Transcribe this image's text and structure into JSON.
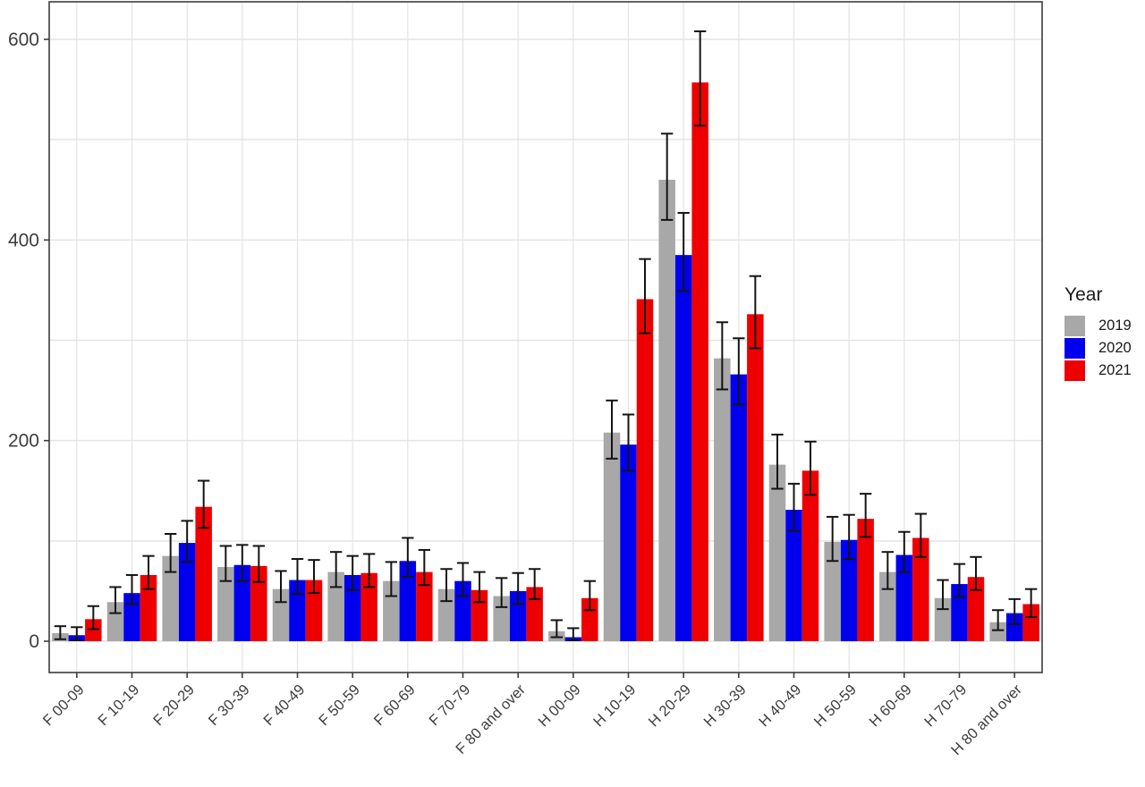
{
  "chart_data": {
    "type": "bar",
    "title": "",
    "xlabel": "",
    "ylabel": "",
    "categories": [
      "F 00-09",
      "F 10-19",
      "F 20-29",
      "F 30-39",
      "F 40-49",
      "F 50-59",
      "F 60-69",
      "F 70-79",
      "F 80 and over",
      "H 00-09",
      "H 10-19",
      "H 20-29",
      "H 30-39",
      "H 40-49",
      "H 50-59",
      "H 60-69",
      "H 70-79",
      "H 80 and over"
    ],
    "series": [
      {
        "name": "2019",
        "color": "#a8a8a8",
        "values": [
          8,
          39,
          85,
          74,
          52,
          69,
          60,
          52,
          45,
          10,
          208,
          460,
          282,
          176,
          99,
          69,
          43,
          19
        ],
        "ci_low": [
          2,
          28,
          69,
          60,
          39,
          54,
          45,
          40,
          34,
          4,
          182,
          420,
          251,
          152,
          80,
          52,
          32,
          11
        ],
        "ci_high": [
          15,
          54,
          107,
          95,
          70,
          89,
          79,
          72,
          63,
          21,
          240,
          506,
          318,
          206,
          124,
          89,
          61,
          31
        ]
      },
      {
        "name": "2020",
        "color": "#0000ee",
        "values": [
          6,
          48,
          98,
          76,
          61,
          66,
          80,
          60,
          50,
          4,
          196,
          385,
          266,
          131,
          101,
          86,
          57,
          28
        ],
        "ci_low": [
          1,
          37,
          79,
          60,
          47,
          51,
          64,
          45,
          37,
          1,
          170,
          349,
          236,
          110,
          82,
          69,
          44,
          17
        ],
        "ci_high": [
          14,
          66,
          120,
          96,
          82,
          85,
          103,
          78,
          68,
          13,
          226,
          427,
          302,
          157,
          126,
          109,
          77,
          42
        ]
      },
      {
        "name": "2021",
        "color": "#ee0000",
        "values": [
          22,
          66,
          134,
          75,
          61,
          68,
          69,
          51,
          54,
          43,
          341,
          557,
          326,
          170,
          122,
          103,
          64,
          37
        ],
        "ci_low": [
          12,
          52,
          113,
          59,
          48,
          54,
          56,
          39,
          42,
          31,
          307,
          514,
          292,
          146,
          104,
          84,
          51,
          24
        ],
        "ci_high": [
          35,
          85,
          160,
          95,
          81,
          87,
          91,
          69,
          72,
          60,
          381,
          608,
          364,
          199,
          147,
          127,
          84,
          52
        ]
      }
    ],
    "error_bars": true,
    "yticks": [
      0,
      200,
      400,
      600
    ],
    "ytick_labels": [
      "0",
      "200",
      "400",
      "600"
    ],
    "ylim": [
      0,
      637
    ],
    "minor_grid_step": 100,
    "grid": true,
    "legend": {
      "title": "Year",
      "position": "right",
      "entries": [
        "2019",
        "2020",
        "2021"
      ]
    },
    "colors": {
      "grid": "#e4e4e4",
      "panel_border": "#3c3c3c",
      "axis_text": "#3d3d3d",
      "error_bar": "#141414",
      "background": "#ffffff"
    }
  }
}
